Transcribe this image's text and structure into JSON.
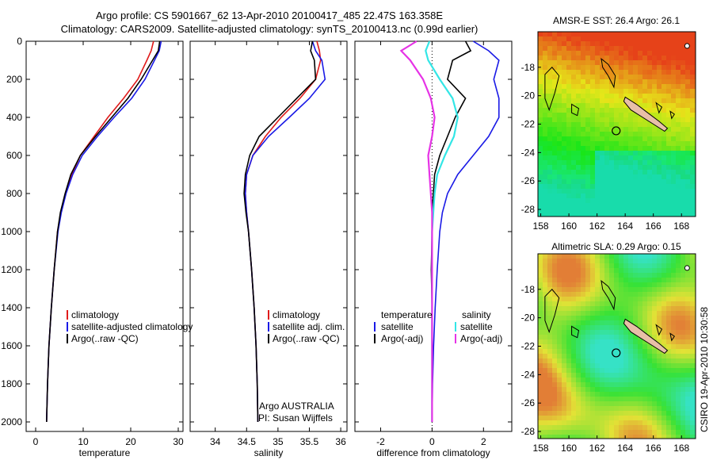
{
  "header": {
    "line1": "Argo profile: CS 5901667_62 13-Apr-2010 20100417_485 22.47S 163.358E",
    "line2": "Climatology: CARS2009. Satellite-adjusted climatology: synTS_20100413.nc (0.99d earlier)"
  },
  "colors": {
    "climatology": "#e01b1b",
    "satellite": "#1a1ae6",
    "argo": "#000000",
    "sat_sal": "#33e6e6",
    "argo_sal": "#e633e6"
  },
  "chart_data": [
    {
      "type": "line",
      "id": "temperature",
      "xlabel": "temperature",
      "ylabel": "",
      "xlim": [
        -2,
        31
      ],
      "ylim": [
        2050,
        0
      ],
      "xticks": [
        0,
        10,
        20,
        30
      ],
      "yticks": [
        0,
        200,
        400,
        600,
        800,
        1000,
        1200,
        1400,
        1600,
        1800,
        2000
      ],
      "legend": [
        "climatology",
        "satellite-adjusted climatology",
        "Argo(..raw -QC)"
      ],
      "series": [
        {
          "name": "climatology",
          "color_key": "climatology",
          "x": [
            24.8,
            24.3,
            23.4,
            21.5,
            18.5,
            15.2,
            12.3,
            9.4,
            7.6,
            6.3,
            5.3,
            4.6,
            3.9,
            3.3,
            2.8,
            2.5,
            2.3
          ],
          "y": [
            0,
            50,
            100,
            200,
            300,
            400,
            500,
            600,
            700,
            800,
            900,
            1000,
            1200,
            1400,
            1600,
            1800,
            2000
          ]
        },
        {
          "name": "satellite-adjusted climatology",
          "color_key": "satellite",
          "x": [
            26.4,
            26.0,
            25.0,
            23.0,
            20.2,
            16.5,
            13.0,
            9.8,
            7.8,
            6.4,
            5.4,
            4.7,
            3.9,
            3.3,
            2.8,
            2.5,
            2.3
          ],
          "y": [
            0,
            50,
            100,
            200,
            300,
            400,
            500,
            600,
            700,
            800,
            900,
            1000,
            1200,
            1400,
            1600,
            1800,
            2000
          ]
        },
        {
          "name": "Argo(..raw -QC)",
          "color_key": "argo",
          "x": [
            26.1,
            25.8,
            24.6,
            22.2,
            19.4,
            16.0,
            12.6,
            9.4,
            7.4,
            6.2,
            5.2,
            4.6,
            3.9,
            3.3,
            2.8,
            2.5,
            2.3
          ],
          "y": [
            0,
            50,
            100,
            200,
            300,
            400,
            500,
            600,
            700,
            800,
            900,
            1000,
            1200,
            1400,
            1600,
            1800,
            2000
          ]
        }
      ]
    },
    {
      "type": "line",
      "id": "salinity",
      "xlabel": "salinity",
      "ylabel": "",
      "xlim": [
        33.6,
        36.1
      ],
      "ylim": [
        2050,
        0
      ],
      "xticks": [
        34,
        34.5,
        35,
        35.5,
        36
      ],
      "legend": [
        "climatology",
        "satellite adj. clim.",
        "Argo(..raw -QC)"
      ],
      "series": [
        {
          "name": "climatology",
          "color_key": "climatology",
          "x": [
            35.62,
            35.66,
            35.68,
            35.6,
            35.35,
            35.05,
            34.8,
            34.6,
            34.5,
            34.48,
            34.5,
            34.53,
            34.58,
            34.62,
            34.65,
            34.67,
            34.68
          ],
          "y": [
            0,
            50,
            100,
            200,
            300,
            400,
            500,
            600,
            700,
            800,
            900,
            1000,
            1200,
            1400,
            1600,
            1800,
            2000
          ]
        },
        {
          "name": "satellite adj. clim.",
          "color_key": "satellite",
          "x": [
            35.55,
            35.6,
            35.7,
            35.75,
            35.5,
            35.18,
            34.85,
            34.6,
            34.5,
            34.48,
            34.5,
            34.53,
            34.58,
            34.62,
            34.65,
            34.67,
            34.68
          ],
          "y": [
            0,
            50,
            100,
            200,
            300,
            400,
            500,
            600,
            700,
            800,
            900,
            1000,
            1200,
            1400,
            1600,
            1800,
            2000
          ]
        },
        {
          "name": "Argo(..raw -QC)",
          "color_key": "argo",
          "x": [
            35.55,
            35.52,
            35.58,
            35.6,
            35.3,
            35.0,
            34.7,
            34.55,
            34.48,
            34.46,
            34.49,
            34.53,
            34.58,
            34.62,
            34.65,
            34.67,
            34.68
          ],
          "y": [
            0,
            50,
            100,
            200,
            300,
            400,
            500,
            600,
            700,
            800,
            900,
            1000,
            1200,
            1400,
            1600,
            1800,
            2000
          ]
        }
      ],
      "annotation": {
        "line1": "Argo AUSTRALIA",
        "line2": "PI: Susan Wijffels"
      }
    },
    {
      "type": "line",
      "id": "difference",
      "xlabel": "difference from climatology",
      "ylabel": "",
      "xlim": [
        -3,
        3.1
      ],
      "ylim": [
        2050,
        0
      ],
      "xticks": [
        -2,
        0,
        2
      ],
      "legend_titles": {
        "left": "temperature",
        "right": "salinity"
      },
      "legend": [
        "satellite",
        "Argo(-adj)",
        "satellite",
        "Argo(-adj)"
      ],
      "series": [
        {
          "name": "satellite",
          "group": "temperature",
          "color_key": "satellite",
          "x": [
            1.6,
            2.2,
            2.6,
            2.4,
            2.6,
            2.6,
            2.2,
            1.6,
            1.0,
            0.6,
            0.4,
            0.3,
            0.2,
            0.12,
            0.06,
            0.02,
            0.0
          ],
          "y": [
            0,
            50,
            100,
            200,
            300,
            400,
            500,
            600,
            700,
            800,
            900,
            1000,
            1200,
            1400,
            1600,
            1800,
            2000
          ]
        },
        {
          "name": "Argo(-adj)",
          "group": "temperature",
          "color_key": "argo",
          "x": [
            1.3,
            1.5,
            0.8,
            0.6,
            1.3,
            0.9,
            0.6,
            0.3,
            0.1,
            0.05,
            0.0,
            0.0,
            -0.03,
            0.0,
            0.0,
            0.0,
            0.0
          ],
          "y": [
            0,
            50,
            100,
            200,
            300,
            400,
            500,
            600,
            700,
            800,
            900,
            1000,
            1200,
            1400,
            1600,
            1800,
            2000
          ]
        },
        {
          "name": "satellite",
          "group": "salinity",
          "color_key": "sat_sal",
          "x": [
            -0.1,
            -0.25,
            -0.15,
            0.3,
            0.8,
            1.0,
            0.85,
            0.5,
            0.2,
            0.1,
            0.05,
            0.0,
            0.0,
            0.0,
            0.0,
            0.0,
            0.0
          ],
          "y": [
            0,
            50,
            100,
            200,
            300,
            400,
            500,
            600,
            700,
            800,
            900,
            1000,
            1200,
            1400,
            1600,
            1800,
            2000
          ]
        },
        {
          "name": "Argo(-adj)",
          "group": "salinity",
          "color_key": "argo_sal",
          "x": [
            -0.6,
            -1.2,
            -0.85,
            -0.35,
            -0.05,
            0.1,
            0.0,
            -0.15,
            -0.1,
            -0.05,
            0.0,
            0.0,
            0.0,
            0.0,
            0.0,
            0.0,
            0.0
          ],
          "y": [
            0,
            50,
            100,
            200,
            300,
            400,
            500,
            600,
            700,
            800,
            900,
            1000,
            1200,
            1400,
            1600,
            1800,
            2000
          ]
        }
      ]
    },
    {
      "type": "heatmap",
      "id": "sst-map",
      "title": "AMSR-E SST: 26.4 Argo: 26.1",
      "xlim": [
        157.8,
        169
      ],
      "ylim": [
        -28.5,
        -15.5
      ],
      "xticks": [
        158,
        160,
        162,
        164,
        166,
        168
      ],
      "yticks": [
        -18,
        -20,
        -22,
        -24,
        -26,
        -28
      ],
      "marker": {
        "lon": 163.358,
        "lat": -22.47
      }
    },
    {
      "type": "heatmap",
      "id": "sla-map",
      "title": "Altimetric SLA: 0.29 Argo: 0.15",
      "xlim": [
        157.8,
        169
      ],
      "ylim": [
        -28.5,
        -15.5
      ],
      "xticks": [
        158,
        160,
        162,
        164,
        166,
        168
      ],
      "yticks": [
        -18,
        -20,
        -22,
        -24,
        -26,
        -28
      ],
      "marker": {
        "lon": 163.358,
        "lat": -22.47
      }
    }
  ],
  "footer": {
    "credit": "CSIRO 19-Apr-2010 10:30:58"
  }
}
